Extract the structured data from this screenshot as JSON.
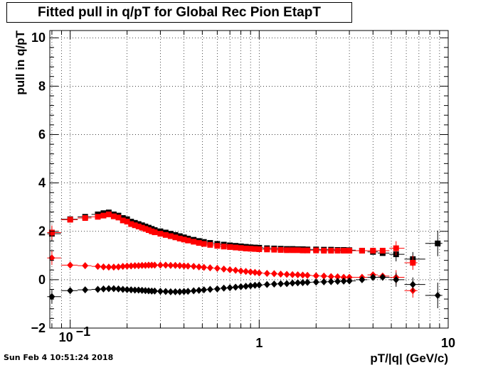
{
  "title": "Fitted pull in q/pT for Global Rec Pion EtapT",
  "datestamp": "Sun Feb  4 10:51:24 2018",
  "chart_data": {
    "type": "scatter",
    "title": "Fitted pull in q/pT for Global Rec Pion EtapT",
    "xlabel": "pT/|q| (GeV/c)",
    "ylabel": "pull in q/pT",
    "xscale": "log",
    "xlim": [
      0.078,
      10
    ],
    "ylim": [
      -2,
      10.3
    ],
    "x_ticks": [
      {
        "value": 0.1,
        "label": "10^-1"
      },
      {
        "value": 1,
        "label": "1"
      },
      {
        "value": 10,
        "label": "10"
      }
    ],
    "y_ticks": [
      {
        "value": -2,
        "label": "−2"
      },
      {
        "value": 0,
        "label": "0"
      },
      {
        "value": 2,
        "label": "2"
      },
      {
        "value": 4,
        "label": "4"
      },
      {
        "value": 6,
        "label": "6"
      },
      {
        "value": 8,
        "label": "8"
      },
      {
        "value": 10,
        "label": "10"
      }
    ],
    "grid": true,
    "series": [
      {
        "color": "#000000",
        "marker": "square",
        "points": [
          [
            0.08,
            1.9
          ],
          [
            0.1,
            2.5
          ],
          [
            0.12,
            2.6
          ],
          [
            0.14,
            2.7
          ],
          [
            0.15,
            2.75
          ],
          [
            0.16,
            2.78
          ],
          [
            0.17,
            2.7
          ],
          [
            0.18,
            2.65
          ],
          [
            0.19,
            2.55
          ],
          [
            0.2,
            2.5
          ],
          [
            0.21,
            2.4
          ],
          [
            0.22,
            2.35
          ],
          [
            0.23,
            2.3
          ],
          [
            0.24,
            2.25
          ],
          [
            0.25,
            2.2
          ],
          [
            0.26,
            2.15
          ],
          [
            0.27,
            2.1
          ],
          [
            0.28,
            2.05
          ],
          [
            0.3,
            2.0
          ],
          [
            0.32,
            1.95
          ],
          [
            0.34,
            1.9
          ],
          [
            0.36,
            1.85
          ],
          [
            0.38,
            1.8
          ],
          [
            0.4,
            1.75
          ],
          [
            0.42,
            1.7
          ],
          [
            0.45,
            1.65
          ],
          [
            0.48,
            1.6
          ],
          [
            0.51,
            1.56
          ],
          [
            0.55,
            1.52
          ],
          [
            0.6,
            1.48
          ],
          [
            0.65,
            1.45
          ],
          [
            0.7,
            1.42
          ],
          [
            0.75,
            1.4
          ],
          [
            0.8,
            1.38
          ],
          [
            0.85,
            1.36
          ],
          [
            0.9,
            1.34
          ],
          [
            0.95,
            1.33
          ],
          [
            1.0,
            1.32
          ],
          [
            1.1,
            1.3
          ],
          [
            1.2,
            1.29
          ],
          [
            1.3,
            1.28
          ],
          [
            1.4,
            1.27
          ],
          [
            1.5,
            1.27
          ],
          [
            1.6,
            1.26
          ],
          [
            1.7,
            1.26
          ],
          [
            1.8,
            1.25
          ],
          [
            2.0,
            1.25
          ],
          [
            2.2,
            1.24
          ],
          [
            2.4,
            1.24
          ],
          [
            2.6,
            1.23
          ],
          [
            2.8,
            1.23
          ],
          [
            3.0,
            1.22
          ],
          [
            3.5,
            1.2
          ],
          [
            4.0,
            1.15
          ],
          [
            4.5,
            1.1
          ],
          [
            5.3,
            1.05
          ],
          [
            6.5,
            0.85
          ],
          [
            8.8,
            1.5
          ]
        ]
      },
      {
        "color": "#ff0000",
        "marker": "square",
        "points": [
          [
            0.08,
            1.95
          ],
          [
            0.1,
            2.48
          ],
          [
            0.12,
            2.55
          ],
          [
            0.14,
            2.6
          ],
          [
            0.15,
            2.65
          ],
          [
            0.16,
            2.7
          ],
          [
            0.17,
            2.62
          ],
          [
            0.18,
            2.57
          ],
          [
            0.19,
            2.45
          ],
          [
            0.2,
            2.4
          ],
          [
            0.21,
            2.3
          ],
          [
            0.22,
            2.25
          ],
          [
            0.23,
            2.2
          ],
          [
            0.24,
            2.15
          ],
          [
            0.25,
            2.1
          ],
          [
            0.26,
            2.05
          ],
          [
            0.27,
            2.0
          ],
          [
            0.28,
            1.96
          ],
          [
            0.3,
            1.9
          ],
          [
            0.32,
            1.85
          ],
          [
            0.34,
            1.8
          ],
          [
            0.36,
            1.75
          ],
          [
            0.38,
            1.7
          ],
          [
            0.4,
            1.66
          ],
          [
            0.42,
            1.62
          ],
          [
            0.45,
            1.57
          ],
          [
            0.48,
            1.52
          ],
          [
            0.51,
            1.48
          ],
          [
            0.55,
            1.44
          ],
          [
            0.6,
            1.4
          ],
          [
            0.65,
            1.37
          ],
          [
            0.7,
            1.35
          ],
          [
            0.75,
            1.33
          ],
          [
            0.8,
            1.31
          ],
          [
            0.85,
            1.29
          ],
          [
            0.9,
            1.28
          ],
          [
            0.95,
            1.27
          ],
          [
            1.0,
            1.26
          ],
          [
            1.1,
            1.25
          ],
          [
            1.2,
            1.24
          ],
          [
            1.3,
            1.23
          ],
          [
            1.4,
            1.22
          ],
          [
            1.5,
            1.22
          ],
          [
            1.6,
            1.22
          ],
          [
            1.7,
            1.21
          ],
          [
            1.8,
            1.21
          ],
          [
            2.0,
            1.21
          ],
          [
            2.2,
            1.2
          ],
          [
            2.4,
            1.2
          ],
          [
            2.6,
            1.2
          ],
          [
            2.8,
            1.2
          ],
          [
            3.0,
            1.2
          ],
          [
            3.5,
            1.2
          ],
          [
            4.0,
            1.2
          ],
          [
            4.5,
            1.2
          ],
          [
            5.3,
            1.3
          ],
          [
            6.5,
            0.7
          ]
        ]
      },
      {
        "color": "#ff0000",
        "marker": "diamond",
        "points": [
          [
            0.08,
            0.9
          ],
          [
            0.1,
            0.6
          ],
          [
            0.12,
            0.58
          ],
          [
            0.14,
            0.55
          ],
          [
            0.15,
            0.53
          ],
          [
            0.16,
            0.52
          ],
          [
            0.17,
            0.52
          ],
          [
            0.18,
            0.53
          ],
          [
            0.19,
            0.55
          ],
          [
            0.2,
            0.56
          ],
          [
            0.21,
            0.57
          ],
          [
            0.22,
            0.58
          ],
          [
            0.23,
            0.58
          ],
          [
            0.24,
            0.59
          ],
          [
            0.25,
            0.59
          ],
          [
            0.26,
            0.6
          ],
          [
            0.27,
            0.6
          ],
          [
            0.28,
            0.6
          ],
          [
            0.3,
            0.6
          ],
          [
            0.32,
            0.6
          ],
          [
            0.34,
            0.59
          ],
          [
            0.36,
            0.59
          ],
          [
            0.38,
            0.58
          ],
          [
            0.4,
            0.57
          ],
          [
            0.42,
            0.56
          ],
          [
            0.45,
            0.55
          ],
          [
            0.48,
            0.53
          ],
          [
            0.51,
            0.51
          ],
          [
            0.55,
            0.49
          ],
          [
            0.6,
            0.47
          ],
          [
            0.65,
            0.44
          ],
          [
            0.7,
            0.41
          ],
          [
            0.75,
            0.39
          ],
          [
            0.8,
            0.36
          ],
          [
            0.85,
            0.34
          ],
          [
            0.9,
            0.32
          ],
          [
            0.95,
            0.3
          ],
          [
            1.0,
            0.28
          ],
          [
            1.1,
            0.26
          ],
          [
            1.2,
            0.25
          ],
          [
            1.3,
            0.23
          ],
          [
            1.4,
            0.22
          ],
          [
            1.5,
            0.21
          ],
          [
            1.6,
            0.2
          ],
          [
            1.7,
            0.19
          ],
          [
            1.8,
            0.18
          ],
          [
            2.0,
            0.16
          ],
          [
            2.2,
            0.15
          ],
          [
            2.4,
            0.13
          ],
          [
            2.6,
            0.12
          ],
          [
            2.8,
            0.1
          ],
          [
            3.0,
            0.1
          ],
          [
            3.5,
            0.1
          ],
          [
            4.0,
            0.2
          ],
          [
            4.5,
            0.15
          ],
          [
            5.3,
            0.1
          ],
          [
            6.5,
            -0.45
          ]
        ]
      },
      {
        "color": "#000000",
        "marker": "diamond",
        "points": [
          [
            0.08,
            -0.7
          ],
          [
            0.1,
            -0.45
          ],
          [
            0.12,
            -0.42
          ],
          [
            0.14,
            -0.4
          ],
          [
            0.15,
            -0.38
          ],
          [
            0.16,
            -0.37
          ],
          [
            0.17,
            -0.37
          ],
          [
            0.18,
            -0.38
          ],
          [
            0.19,
            -0.4
          ],
          [
            0.2,
            -0.41
          ],
          [
            0.21,
            -0.42
          ],
          [
            0.22,
            -0.43
          ],
          [
            0.23,
            -0.43
          ],
          [
            0.24,
            -0.44
          ],
          [
            0.25,
            -0.45
          ],
          [
            0.26,
            -0.46
          ],
          [
            0.27,
            -0.47
          ],
          [
            0.28,
            -0.47
          ],
          [
            0.3,
            -0.48
          ],
          [
            0.32,
            -0.49
          ],
          [
            0.34,
            -0.5
          ],
          [
            0.36,
            -0.5
          ],
          [
            0.38,
            -0.5
          ],
          [
            0.4,
            -0.49
          ],
          [
            0.42,
            -0.48
          ],
          [
            0.45,
            -0.46
          ],
          [
            0.48,
            -0.44
          ],
          [
            0.51,
            -0.42
          ],
          [
            0.55,
            -0.4
          ],
          [
            0.6,
            -0.38
          ],
          [
            0.65,
            -0.35
          ],
          [
            0.7,
            -0.33
          ],
          [
            0.75,
            -0.31
          ],
          [
            0.8,
            -0.29
          ],
          [
            0.85,
            -0.27
          ],
          [
            0.9,
            -0.25
          ],
          [
            0.95,
            -0.23
          ],
          [
            1.0,
            -0.22
          ],
          [
            1.1,
            -0.2
          ],
          [
            1.2,
            -0.18
          ],
          [
            1.3,
            -0.17
          ],
          [
            1.4,
            -0.16
          ],
          [
            1.5,
            -0.14
          ],
          [
            1.6,
            -0.13
          ],
          [
            1.7,
            -0.12
          ],
          [
            1.8,
            -0.11
          ],
          [
            2.0,
            -0.1
          ],
          [
            2.2,
            -0.09
          ],
          [
            2.4,
            -0.08
          ],
          [
            2.6,
            -0.07
          ],
          [
            2.8,
            -0.06
          ],
          [
            3.0,
            -0.05
          ],
          [
            3.5,
            0.0
          ],
          [
            4.0,
            0.1
          ],
          [
            4.5,
            0.1
          ],
          [
            5.3,
            0.0
          ],
          [
            6.5,
            -0.2
          ],
          [
            8.8,
            -0.65
          ]
        ]
      }
    ]
  }
}
